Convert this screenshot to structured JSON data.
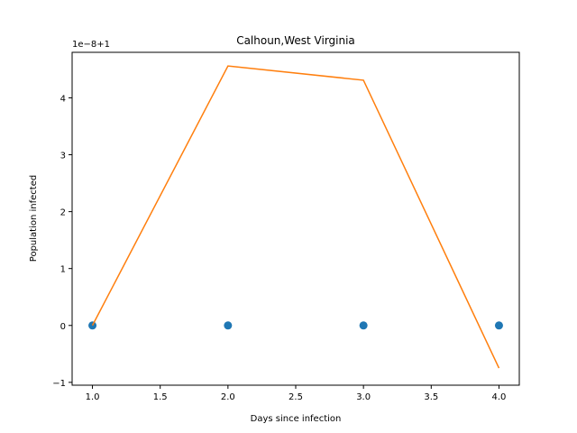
{
  "chart_data": {
    "type": "line",
    "title": "Calhoun,West Virginia",
    "xlabel": "Days since infection",
    "ylabel": "Population infected",
    "offset_label": "1e−8+1",
    "x_ticks": [
      "1.0",
      "1.5",
      "2.0",
      "2.5",
      "3.0",
      "3.5",
      "4.0"
    ],
    "y_ticks": [
      "−1",
      "0",
      "1",
      "2",
      "3",
      "4"
    ],
    "xlim": [
      0.85,
      4.15
    ],
    "ylim": [
      -1.05,
      4.8
    ],
    "grid": false,
    "series": [
      {
        "style": "scatter",
        "color": "#1f77b4",
        "x": [
          1,
          2,
          3,
          4
        ],
        "y": [
          0,
          0,
          0,
          0
        ]
      },
      {
        "style": "line",
        "color": "#ff7f0e",
        "x": [
          1,
          2,
          3,
          4
        ],
        "y": [
          0,
          4.56,
          4.31,
          -0.75
        ]
      }
    ]
  }
}
